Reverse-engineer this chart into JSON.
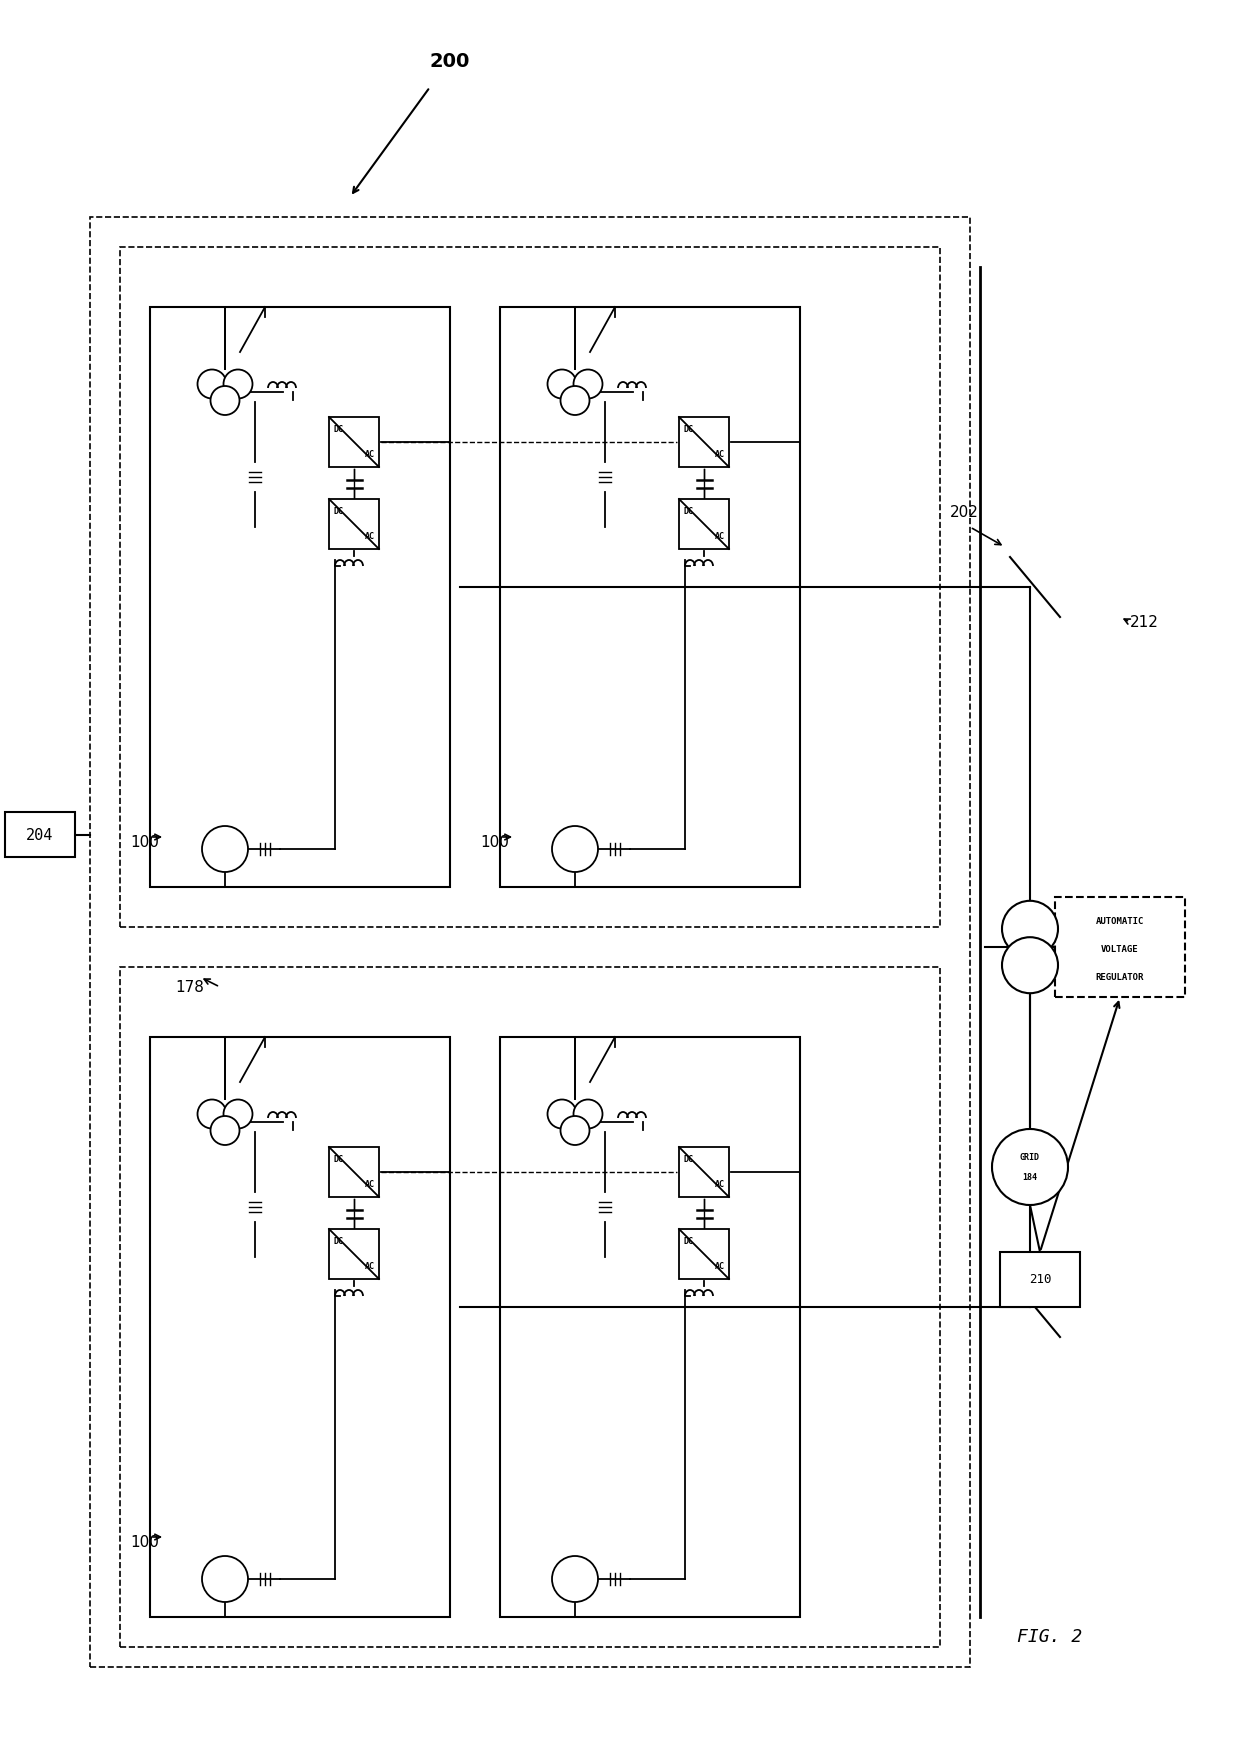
{
  "bg_color": "#ffffff",
  "fig_width": 12.4,
  "fig_height": 17.47,
  "title": "FIG. 2",
  "label_200": "200",
  "label_204": "204",
  "label_178": "178",
  "label_100": "100",
  "label_202": "202",
  "label_212": "212",
  "label_210": "210",
  "label_184": "184",
  "avr_text": [
    "AUTOMATIC",
    "VOLTAGE",
    "REGULATOR"
  ],
  "grid_text": [
    "GRID",
    "184"
  ]
}
